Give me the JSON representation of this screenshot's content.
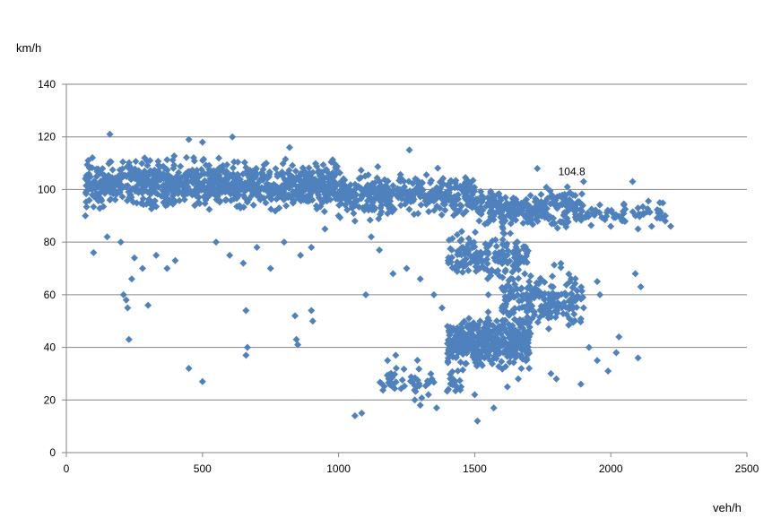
{
  "chart_data": {
    "type": "scatter",
    "ylabel": "km/h",
    "xlabel": "veh/h",
    "xlim": [
      0,
      2500
    ],
    "ylim": [
      0,
      140
    ],
    "x_ticks": [
      "0",
      "500",
      "1000",
      "1500",
      "2000",
      "2500"
    ],
    "y_ticks": [
      "0",
      "20",
      "40",
      "60",
      "80",
      "100",
      "120",
      "140"
    ],
    "grid": "horizontal",
    "legend": "none",
    "marker": "diamond",
    "series": [
      {
        "color": "#4F81BD",
        "points": [
          [
            160,
            121
          ],
          [
            610,
            120
          ],
          [
            450,
            119
          ],
          [
            500,
            118
          ],
          [
            1260,
            115
          ],
          [
            820,
            116
          ],
          [
            1730,
            108
          ],
          [
            1900,
            103
          ],
          [
            2080,
            103
          ],
          [
            2200,
            90
          ],
          [
            2180,
            95
          ],
          [
            80,
            111
          ],
          [
            70,
            90
          ],
          [
            100,
            76
          ],
          [
            150,
            82
          ],
          [
            210,
            60
          ],
          [
            225,
            55
          ],
          [
            230,
            43
          ],
          [
            300,
            56
          ],
          [
            450,
            32
          ],
          [
            500,
            27
          ],
          [
            660,
            54
          ],
          [
            665,
            40
          ],
          [
            660,
            37
          ],
          [
            840,
            52
          ],
          [
            845,
            43
          ],
          [
            850,
            41
          ],
          [
            900,
            54
          ],
          [
            905,
            50
          ],
          [
            1085,
            15
          ],
          [
            1060,
            14
          ],
          [
            1100,
            60
          ],
          [
            1180,
            35
          ],
          [
            1210,
            37
          ],
          [
            1280,
            20
          ],
          [
            1300,
            18
          ],
          [
            1330,
            22
          ],
          [
            1360,
            17
          ],
          [
            1420,
            28
          ],
          [
            1450,
            25
          ],
          [
            1500,
            22
          ],
          [
            1510,
            12
          ],
          [
            1570,
            17
          ],
          [
            1620,
            25
          ],
          [
            1660,
            28
          ],
          [
            1700,
            32
          ],
          [
            1780,
            30
          ],
          [
            1800,
            28
          ],
          [
            1890,
            26
          ],
          [
            1920,
            40
          ],
          [
            1950,
            35
          ],
          [
            1990,
            31
          ],
          [
            2020,
            38
          ],
          [
            2030,
            44
          ],
          [
            2100,
            36
          ],
          [
            2110,
            63
          ],
          [
            2090,
            68
          ],
          [
            1950,
            65
          ],
          [
            1960,
            60
          ],
          [
            1900,
            55
          ],
          [
            1860,
            50
          ],
          [
            1740,
            60
          ],
          [
            1700,
            65
          ],
          [
            1650,
            70
          ],
          [
            1600,
            55
          ],
          [
            1550,
            60
          ],
          [
            1520,
            50
          ],
          [
            1480,
            45
          ],
          [
            1460,
            42
          ],
          [
            1440,
            38
          ],
          [
            1400,
            48
          ],
          [
            1380,
            55
          ],
          [
            1350,
            60
          ],
          [
            1300,
            66
          ],
          [
            1250,
            70
          ],
          [
            1200,
            68
          ],
          [
            1150,
            77
          ],
          [
            1120,
            82
          ],
          [
            1060,
            88
          ],
          [
            1000,
            90
          ],
          [
            950,
            85
          ],
          [
            900,
            78
          ],
          [
            860,
            75
          ],
          [
            800,
            80
          ],
          [
            750,
            70
          ],
          [
            700,
            78
          ],
          [
            650,
            72
          ],
          [
            600,
            75
          ],
          [
            550,
            80
          ],
          [
            400,
            73
          ],
          [
            370,
            70
          ],
          [
            330,
            75
          ],
          [
            280,
            70
          ],
          [
            250,
            74
          ],
          [
            240,
            66
          ],
          [
            220,
            58
          ],
          [
            200,
            80
          ],
          [
            2000,
            86
          ],
          [
            2050,
            88
          ],
          [
            2100,
            85
          ],
          [
            2150,
            86
          ],
          [
            2220,
            86
          ],
          [
            2200,
            88
          ]
        ],
        "annotation": {
          "x": 1840,
          "y": 104.8,
          "label": "104.8"
        }
      }
    ],
    "dense_regions": [
      {
        "x_range": [
          70,
          1000
        ],
        "y_center": 102,
        "y_spread": 10,
        "density": 900
      },
      {
        "x_range": [
          1000,
          1500
        ],
        "y_center": 98,
        "y_spread": 9,
        "density": 380
      },
      {
        "x_range": [
          1500,
          1900
        ],
        "y_center": 93,
        "y_spread": 8,
        "density": 260
      },
      {
        "x_range": [
          1400,
          1700
        ],
        "y_center": 42,
        "y_spread": 10,
        "density": 420
      },
      {
        "x_range": [
          1600,
          1900
        ],
        "y_center": 58,
        "y_spread": 12,
        "density": 200
      },
      {
        "x_range": [
          1400,
          1700
        ],
        "y_center": 75,
        "y_spread": 10,
        "density": 160
      },
      {
        "x_range": [
          1900,
          2200
        ],
        "y_center": 91,
        "y_spread": 5,
        "density": 60
      },
      {
        "x_range": [
          1150,
          1450
        ],
        "y_center": 27,
        "y_spread": 8,
        "density": 60
      }
    ]
  }
}
